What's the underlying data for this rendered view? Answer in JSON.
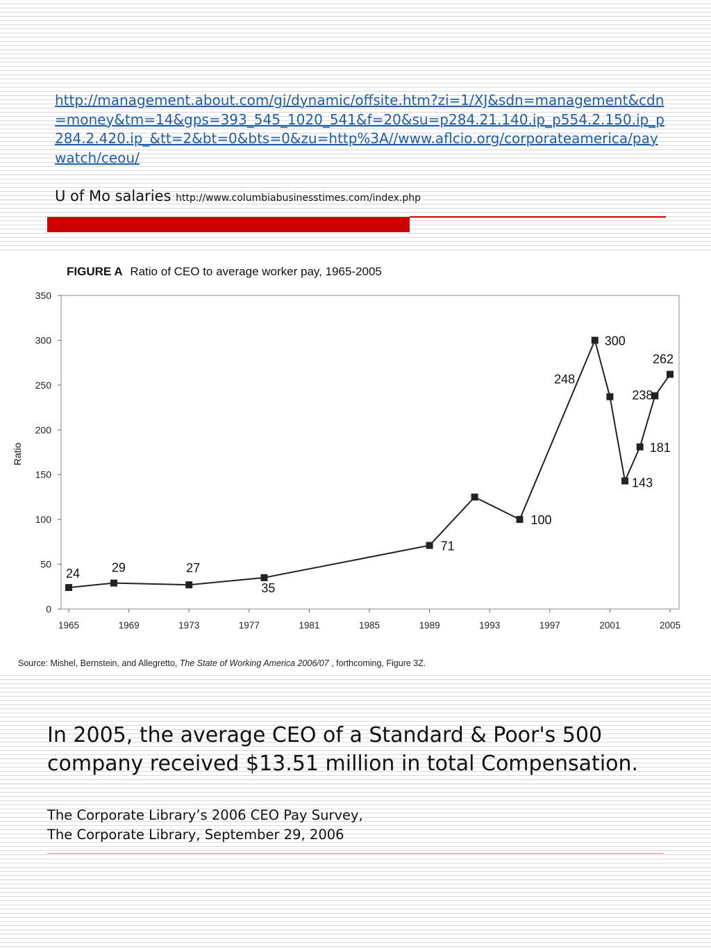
{
  "header": {
    "link_url": "http://management.about.com/gi/dynamic/offsite.htm?zi=1/XJ&sdn=management&cdn=money&tm=14&gps=393_545_1020_541&f=20&su=p284.21.140.ip_p554.2.150.ip_p284.2.420.ip_&tt=2&bt=0&bts=0&zu=http%3A//www.aflcio.org/corporateamerica/paywatch/ceou/",
    "uofmo_label": "U of Mo salaries",
    "uofmo_url": "http://www.columbiabusinesstimes.com/index.php"
  },
  "colors": {
    "accent_red": "#cc0000",
    "link": "#1f5fa8"
  },
  "chart_data": {
    "type": "line",
    "title_prefix": "FIGURE A",
    "title": "Ratio of CEO to average worker pay, 1965-2005",
    "xlabel": "",
    "ylabel": "Ratio",
    "xlim": [
      1965,
      2005
    ],
    "ylim": [
      0,
      350
    ],
    "x_ticks": [
      1965,
      1969,
      1973,
      1977,
      1981,
      1985,
      1989,
      1993,
      1997,
      2001,
      2005
    ],
    "y_ticks": [
      0,
      50,
      100,
      150,
      200,
      250,
      300,
      350
    ],
    "x": [
      1965,
      1968,
      1973,
      1978,
      1989,
      1992,
      1995,
      2000,
      2001,
      2002,
      2003,
      2004,
      2005
    ],
    "values": [
      24,
      29,
      27,
      35,
      71,
      125,
      100,
      300,
      237,
      143,
      181,
      238,
      262
    ],
    "point_labels": [
      "24",
      "29",
      "27",
      "35",
      "71",
      "",
      "100",
      "300",
      "",
      "143",
      "181",
      "238",
      "262"
    ],
    "extra_labels": [
      {
        "text": "248",
        "x": 1999,
        "y": 248
      }
    ],
    "source_prefix": "Source: Mishel, Bernstein, and Allegretto, ",
    "source_title": "The State of Working America 2006/07",
    "source_suffix": " , forthcoming, Figure 3Z."
  },
  "body": {
    "main_text": "In 2005, the average CEO of a Standard & Poor's 500 company received $13.51 million in total Compensation.",
    "citation_line1": "The Corporate Library’s 2006 CEO Pay Survey,",
    "citation_line2": "The Corporate Library, September 29, 2006"
  }
}
